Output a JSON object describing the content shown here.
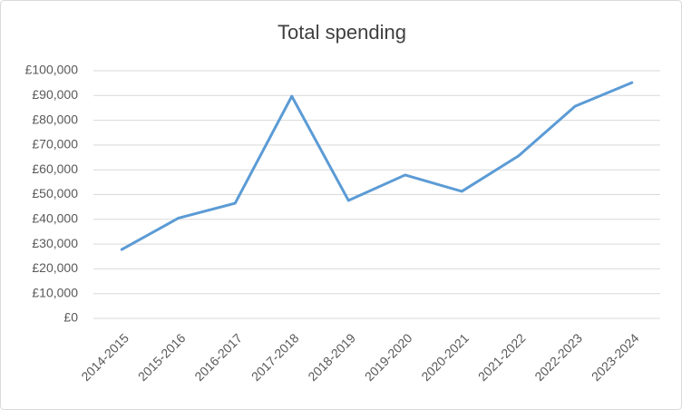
{
  "chart_data": {
    "type": "line",
    "title": "Total spending",
    "categories": [
      "2014-2015",
      "2015-2016",
      "2016-2017",
      "2017-2018",
      "2018-2019",
      "2019-2020",
      "2020-2021",
      "2021-2022",
      "2022-2023",
      "2023-2024"
    ],
    "series": [
      {
        "name": "Total spending",
        "color": "#5b9bd5",
        "values": [
          27800,
          40500,
          46500,
          89700,
          47600,
          57900,
          51300,
          65600,
          85700,
          95200
        ]
      }
    ],
    "ylim": [
      0,
      100000
    ],
    "yticks": [
      {
        "value": 0,
        "label": "£0"
      },
      {
        "value": 10000,
        "label": "£10,000"
      },
      {
        "value": 20000,
        "label": "£20,000"
      },
      {
        "value": 30000,
        "label": "£30,000"
      },
      {
        "value": 40000,
        "label": "£40,000"
      },
      {
        "value": 50000,
        "label": "£50,000"
      },
      {
        "value": 60000,
        "label": "£60,000"
      },
      {
        "value": 70000,
        "label": "£70,000"
      },
      {
        "value": 80000,
        "label": "£80,000"
      },
      {
        "value": 90000,
        "label": "£90,000"
      },
      {
        "value": 100000,
        "label": "£100,000"
      }
    ],
    "grid": true
  }
}
